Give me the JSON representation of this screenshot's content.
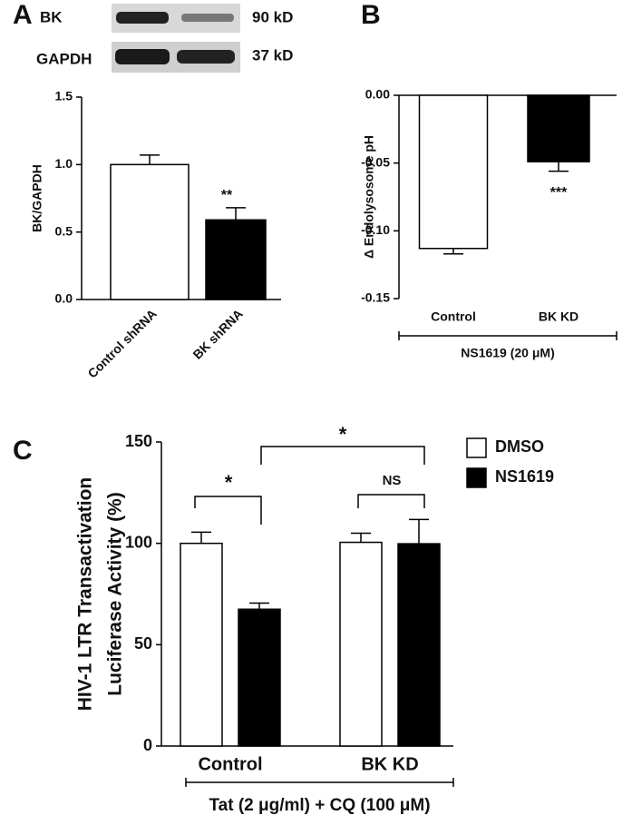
{
  "blot": {
    "bands": [
      "BK",
      "GAPDH"
    ],
    "sizes": [
      "90 kD",
      "37 kD"
    ]
  },
  "chart_data": [
    {
      "type": "bar",
      "panel": "A",
      "ylabel": "BK/GAPDH",
      "categories": [
        "Control shRNA",
        "BK shRNA"
      ],
      "values": [
        1.0,
        0.59
      ],
      "errors": [
        0.07,
        0.09
      ],
      "colors": [
        "#ffffff",
        "#000000"
      ],
      "annotations": [
        "**"
      ],
      "ylim": [
        0,
        1.5
      ],
      "yticks": [
        {
          "value": 0,
          "label": "0.0"
        },
        0.5,
        {
          "value": 1,
          "label": "1.0"
        },
        1.5
      ]
    },
    {
      "type": "bar",
      "panel": "B",
      "ylabel": "Δ Endolysosome pH",
      "categories": [
        "Control",
        "BK KD"
      ],
      "values": [
        -0.113,
        -0.049
      ],
      "errors": [
        0.004,
        0.007
      ],
      "colors": [
        "#ffffff",
        "#000000"
      ],
      "annotations": [
        "***"
      ],
      "group_label": "NS1619 (20 μM)",
      "ylim": [
        -0.15,
        0
      ],
      "yticks": [
        {
          "value": 0,
          "label": "0.00"
        },
        -0.05,
        {
          "value": -0.1,
          "label": "-0.10"
        },
        -0.15
      ]
    },
    {
      "type": "grouped_bar",
      "panel": "C",
      "ylabel": [
        "HIV-1 LTR Transactivation",
        "Luciferase Activity (%)"
      ],
      "categories": [
        "Control",
        "BK KD"
      ],
      "series": [
        {
          "name": "DMSO",
          "color": "#ffffff",
          "values": [
            100,
            100.5
          ],
          "errors": [
            5.5,
            4.5
          ]
        },
        {
          "name": "NS1619",
          "color": "#000000",
          "values": [
            67.5,
            99.8
          ],
          "errors": [
            3,
            12
          ]
        }
      ],
      "annotations": [
        "*",
        "NS",
        "*"
      ],
      "group_label": "Tat (2 μg/ml) + CQ (100 μM)",
      "ylim": [
        0,
        150
      ],
      "yticks": [
        0,
        50,
        100,
        150
      ],
      "legend": "top-right"
    }
  ]
}
